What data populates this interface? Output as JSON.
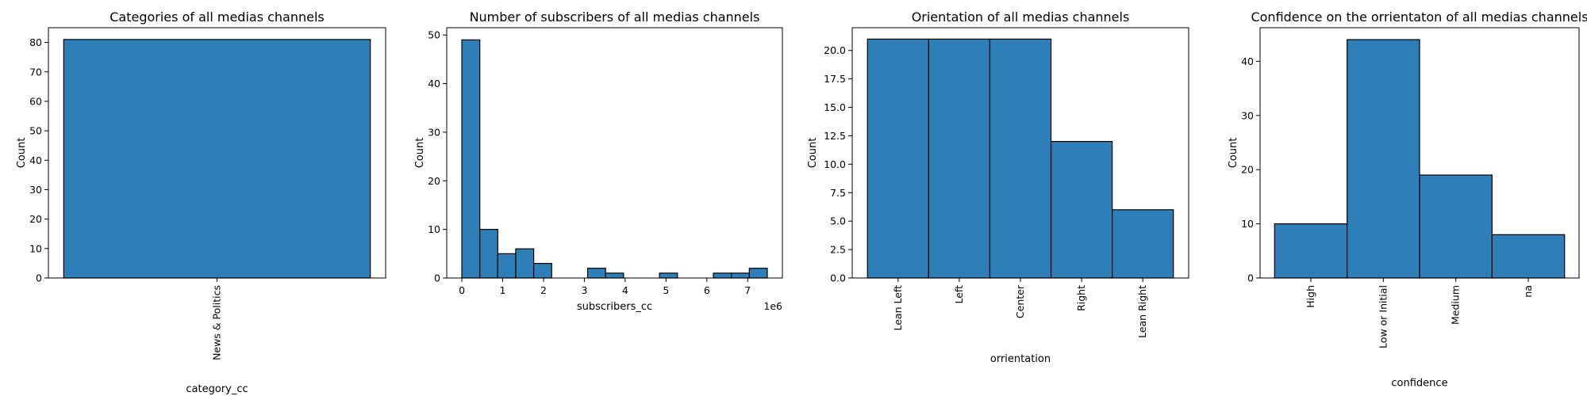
{
  "chart_data": [
    {
      "type": "bar",
      "title": "Categories of all medias channels",
      "xlabel": "category_cc",
      "ylabel": "Count",
      "categories": [
        "News & Politics"
      ],
      "values": [
        81
      ],
      "ylim": [
        0,
        85
      ],
      "yticks": [
        0,
        10,
        20,
        30,
        40,
        50,
        60,
        70,
        80
      ],
      "color": "#2e7fb8",
      "grid": false
    },
    {
      "type": "bar",
      "title": "Number of subscribers of all medias channels",
      "xlabel": "subscribers_cc",
      "ylabel": "Count",
      "x_offset_label": "1e6",
      "bin_edges": [
        0,
        0.44,
        0.88,
        1.32,
        1.76,
        2.2,
        2.64,
        3.08,
        3.52,
        3.96,
        4.4,
        4.84,
        5.28,
        5.72,
        6.16,
        6.6,
        7.04,
        7.48
      ],
      "values": [
        49,
        10,
        5,
        6,
        3,
        0,
        0,
        2,
        1,
        0,
        0,
        1,
        0,
        0,
        1,
        1,
        2
      ],
      "xlim": [
        -0.37,
        7.85
      ],
      "xticks": [
        0,
        1,
        2,
        3,
        4,
        5,
        6,
        7
      ],
      "ylim": [
        0,
        51.5
      ],
      "yticks": [
        0,
        10,
        20,
        30,
        40,
        50
      ],
      "color": "#2e7fb8",
      "grid": false
    },
    {
      "type": "bar",
      "title": "Orientation of all medias channels",
      "xlabel": "orrientation",
      "ylabel": "Count",
      "categories": [
        "Lean Left",
        "Left",
        "Center",
        "Right",
        "Lean Right"
      ],
      "values": [
        21,
        21,
        21,
        12,
        6
      ],
      "ylim": [
        0,
        22
      ],
      "yticks": [
        "0.0",
        "2.5",
        "5.0",
        "7.5",
        "10.0",
        "12.5",
        "15.0",
        "17.5",
        "20.0"
      ],
      "color": "#2e7fb8",
      "grid": false
    },
    {
      "type": "bar",
      "title": "Confidence on the orrientaton of all medias channels",
      "xlabel": "confidence",
      "ylabel": "Count",
      "categories": [
        "High",
        "Low or Initial",
        "Medium",
        "na"
      ],
      "values": [
        10,
        44,
        19,
        8
      ],
      "ylim": [
        0,
        46.2
      ],
      "yticks": [
        0,
        10,
        20,
        30,
        40
      ],
      "color": "#2e7fb8",
      "grid": false
    }
  ]
}
